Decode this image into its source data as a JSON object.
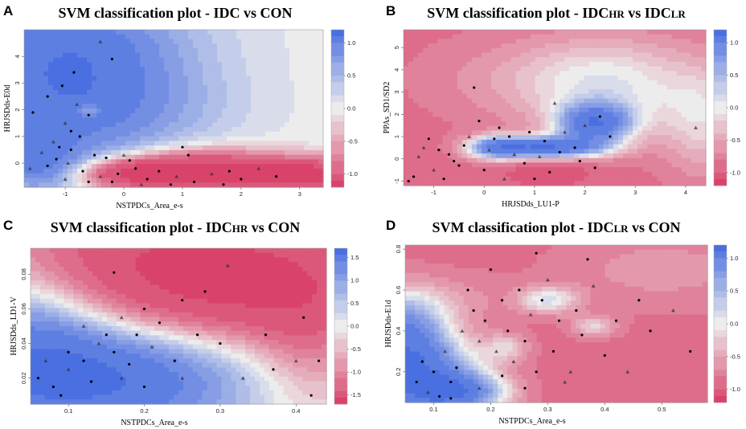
{
  "figure": {
    "colors": {
      "svm_class_a": "#d9436a",
      "svm_neutral": "#ececec",
      "svm_class_b": "#4a6fe0"
    }
  },
  "chart_data": [
    {
      "panel": "A",
      "type": "heatmap",
      "title": "SVM classification plot - IDC vs CON",
      "title_parts": [
        "SVM classification plot - IDC vs CON",
        "",
        ""
      ],
      "xlabel": "NSTPDCs_Area_e-s",
      "ylabel": "HRJSDds-E0d",
      "xlim": [
        -1.7,
        3.4
      ],
      "ylim": [
        -0.9,
        5.0
      ],
      "xticks": [
        "-1",
        "0",
        "1",
        "2",
        "3"
      ],
      "yticks": [
        "0",
        "1",
        "2",
        "3",
        "4"
      ],
      "colorbar": {
        "range": [
          -1.2,
          1.2
        ],
        "ticks": [
          "1.0",
          "0.5",
          "0.0",
          "-0.5",
          "-1.0"
        ]
      },
      "field": {
        "base": 0.0,
        "blobs": [
          {
            "x": -1.1,
            "y": 2.8,
            "sx": 1.1,
            "sy": 2.0,
            "a": 1.2
          },
          {
            "x": -0.6,
            "y": 4.6,
            "sx": 1.5,
            "sy": 1.4,
            "a": 0.6
          },
          {
            "x": -1.5,
            "y": 0.1,
            "sx": 0.5,
            "sy": 0.7,
            "a": 0.9
          },
          {
            "x": 0.4,
            "y": 2.0,
            "sx": 1.2,
            "sy": 1.2,
            "a": 0.4
          },
          {
            "x": 0.1,
            "y": -0.4,
            "sx": 0.6,
            "sy": 0.4,
            "a": -1.6
          },
          {
            "x": 1.3,
            "y": -0.2,
            "sx": 0.8,
            "sy": 0.5,
            "a": -1.4
          },
          {
            "x": 2.5,
            "y": -0.5,
            "sx": 1.0,
            "sy": 0.5,
            "a": -1.2
          },
          {
            "x": 3.2,
            "y": -0.4,
            "sx": 0.5,
            "sy": 0.4,
            "a": -1.0
          },
          {
            "x": -0.6,
            "y": 2.0,
            "sx": 0.15,
            "sy": 0.2,
            "a": -0.8
          }
        ]
      },
      "points": [
        [
          -1.05,
          2.9
        ],
        [
          -0.85,
          3.4
        ],
        [
          -0.4,
          4.55
        ],
        [
          -0.2,
          3.9
        ],
        [
          -1.3,
          2.5
        ],
        [
          -0.8,
          2.2
        ],
        [
          -0.6,
          1.8
        ],
        [
          -1.55,
          1.9
        ],
        [
          -1.0,
          1.5
        ],
        [
          -0.9,
          1.2
        ],
        [
          -0.75,
          1.0
        ],
        [
          -1.2,
          0.8
        ],
        [
          -1.1,
          0.6
        ],
        [
          -0.9,
          0.5
        ],
        [
          -1.4,
          0.4
        ],
        [
          -0.5,
          0.3
        ],
        [
          -0.3,
          0.2
        ],
        [
          -1.6,
          -0.2
        ],
        [
          -1.3,
          -0.1
        ],
        [
          -0.7,
          -0.3
        ],
        [
          -0.4,
          -0.5
        ],
        [
          -0.1,
          -0.4
        ],
        [
          0.2,
          -0.2
        ],
        [
          0.0,
          0.3
        ],
        [
          0.4,
          -0.6
        ],
        [
          0.6,
          -0.3
        ],
        [
          0.9,
          -0.5
        ],
        [
          1.1,
          0.3
        ],
        [
          1.2,
          -0.7
        ],
        [
          1.5,
          -0.4
        ],
        [
          1.8,
          -0.3
        ],
        [
          2.0,
          -0.6
        ],
        [
          2.3,
          -0.2
        ],
        [
          2.6,
          -0.5
        ],
        [
          -0.2,
          -0.7
        ],
        [
          0.3,
          -0.8
        ],
        [
          0.8,
          -0.8
        ],
        [
          1.7,
          -0.8
        ],
        [
          -1.0,
          -0.6
        ],
        [
          -0.6,
          -0.7
        ],
        [
          -1.15,
          0.15
        ],
        [
          -0.95,
          0.0
        ],
        [
          0.1,
          0.1
        ],
        [
          1.0,
          0.6
        ]
      ]
    },
    {
      "panel": "B",
      "type": "heatmap",
      "title": "SVM classification plot - IDCHR vs IDCLR",
      "title_parts": [
        "SVM classification plot - IDC",
        "HR",
        " vs IDC",
        "LR"
      ],
      "xlabel": "HRJSDds_LU1-P",
      "ylabel": "PPAs_SD1/SD2",
      "xlim": [
        -1.6,
        4.4
      ],
      "ylim": [
        -1.2,
        5.8
      ],
      "xticks": [
        "-1",
        "0",
        "1",
        "2",
        "3",
        "4"
      ],
      "yticks": [
        "-1",
        "0",
        "1",
        "2",
        "3",
        "4",
        "5"
      ],
      "colorbar": {
        "range": [
          -1.2,
          1.2
        ],
        "ticks": [
          "1.0",
          "0.5",
          "0.0",
          "-0.5",
          "-1.0"
        ]
      },
      "field": {
        "base": -0.9,
        "blobs": [
          {
            "x": 2.6,
            "y": 3.2,
            "sx": 1.3,
            "sy": 1.8,
            "a": 0.85
          },
          {
            "x": 1.2,
            "y": 0.5,
            "sx": 0.8,
            "sy": 0.35,
            "a": 2.2
          },
          {
            "x": 2.2,
            "y": 1.6,
            "sx": 0.5,
            "sy": 0.6,
            "a": 1.9
          },
          {
            "x": 0.2,
            "y": 0.5,
            "sx": 0.4,
            "sy": 0.4,
            "a": 1.2
          },
          {
            "x": 4.4,
            "y": 1.5,
            "sx": 0.6,
            "sy": 2.0,
            "a": 0.6
          },
          {
            "x": 0.5,
            "y": 3.6,
            "sx": 1.5,
            "sy": 1.5,
            "a": 0.35
          },
          {
            "x": 1.3,
            "y": -0.6,
            "sx": 0.6,
            "sy": 0.4,
            "a": -0.5
          }
        ]
      },
      "points": [
        [
          -1.1,
          0.9
        ],
        [
          -0.9,
          0.4
        ],
        [
          -1.3,
          0.1
        ],
        [
          -0.7,
          0.2
        ],
        [
          -0.5,
          -0.3
        ],
        [
          -1.0,
          -0.5
        ],
        [
          -1.4,
          -0.8
        ],
        [
          -0.8,
          -0.9
        ],
        [
          -0.3,
          1.0
        ],
        [
          -0.2,
          3.2
        ],
        [
          -0.1,
          1.7
        ],
        [
          0.1,
          0.4
        ],
        [
          0.3,
          1.4
        ],
        [
          0.5,
          1.0
        ],
        [
          0.6,
          0.2
        ],
        [
          0.8,
          -0.2
        ],
        [
          0.9,
          1.2
        ],
        [
          1.1,
          0.1
        ],
        [
          1.3,
          -0.6
        ],
        [
          1.5,
          0.3
        ],
        [
          1.6,
          1.2
        ],
        [
          1.8,
          0.5
        ],
        [
          1.9,
          -0.1
        ],
        [
          2.0,
          1.5
        ],
        [
          2.2,
          -0.4
        ],
        [
          2.3,
          1.9
        ],
        [
          1.4,
          2.5
        ],
        [
          2.5,
          1.0
        ],
        [
          -0.6,
          -0.1
        ],
        [
          -1.2,
          0.5
        ],
        [
          -0.4,
          0.6
        ],
        [
          0.0,
          -0.5
        ],
        [
          0.4,
          -0.9
        ],
        [
          1.0,
          -0.9
        ],
        [
          -1.5,
          -1.0
        ],
        [
          4.2,
          1.4
        ],
        [
          0.2,
          0.9
        ],
        [
          1.2,
          0.8
        ]
      ]
    },
    {
      "panel": "C",
      "type": "heatmap",
      "title": "SVM classification plot - IDCHR vs CON",
      "title_parts": [
        "SVM classification plot - IDC",
        "HR",
        " vs CON",
        ""
      ],
      "xlabel": "NSTPDCs_Area_e-s",
      "ylabel": "HRJSDds_LD1-V",
      "xlim": [
        0.05,
        0.44
      ],
      "ylim": [
        0.005,
        0.095
      ],
      "xticks": [
        "0.1",
        "0.2",
        "0.3",
        "0.4"
      ],
      "yticks": [
        "0.02",
        "0.04",
        "0.06",
        "0.08"
      ],
      "colorbar": {
        "range": [
          -1.7,
          1.7
        ],
        "ticks": [
          "1.5",
          "1.0",
          "0.5",
          "0.0",
          "-0.5",
          "-1.0",
          "-1.5"
        ]
      },
      "field": {
        "base": 0.0,
        "blobs": [
          {
            "x": 0.15,
            "y": 0.02,
            "sx": 0.12,
            "sy": 0.022,
            "a": 1.6
          },
          {
            "x": 0.05,
            "y": 0.04,
            "sx": 0.06,
            "sy": 0.03,
            "a": 0.8
          },
          {
            "x": 0.32,
            "y": 0.075,
            "sx": 0.13,
            "sy": 0.025,
            "a": -1.6
          },
          {
            "x": 0.15,
            "y": 0.095,
            "sx": 0.15,
            "sy": 0.025,
            "a": -0.8
          },
          {
            "x": 0.42,
            "y": 0.045,
            "sx": 0.05,
            "sy": 0.03,
            "a": -0.5
          }
        ]
      },
      "points": [
        [
          0.06,
          0.02
        ],
        [
          0.08,
          0.015
        ],
        [
          0.1,
          0.025
        ],
        [
          0.12,
          0.03
        ],
        [
          0.13,
          0.018
        ],
        [
          0.14,
          0.04
        ],
        [
          0.15,
          0.045
        ],
        [
          0.16,
          0.035
        ],
        [
          0.17,
          0.02
        ],
        [
          0.18,
          0.028
        ],
        [
          0.2,
          0.015
        ],
        [
          0.21,
          0.038
        ],
        [
          0.22,
          0.052
        ],
        [
          0.24,
          0.03
        ],
        [
          0.25,
          0.02
        ],
        [
          0.27,
          0.045
        ],
        [
          0.16,
          0.081
        ],
        [
          0.17,
          0.055
        ],
        [
          0.28,
          0.07
        ],
        [
          0.3,
          0.04
        ],
        [
          0.33,
          0.02
        ],
        [
          0.36,
          0.045
        ],
        [
          0.37,
          0.025
        ],
        [
          0.4,
          0.03
        ],
        [
          0.42,
          0.01
        ],
        [
          0.1,
          0.035
        ],
        [
          0.12,
          0.05
        ],
        [
          0.2,
          0.06
        ],
        [
          0.25,
          0.065
        ],
        [
          0.31,
          0.085
        ],
        [
          0.41,
          0.055
        ],
        [
          0.43,
          0.03
        ],
        [
          0.07,
          0.03
        ],
        [
          0.09,
          0.01
        ],
        [
          0.19,
          0.045
        ]
      ]
    },
    {
      "panel": "D",
      "type": "heatmap",
      "title": "SVM classification plot - IDCLR vs CON",
      "title_parts": [
        "SVM classification plot - IDC",
        "LR",
        " vs CON",
        ""
      ],
      "xlabel": "NSTPDCs_Area_e-s",
      "ylabel": "HRJSDds-E1d",
      "xlim": [
        0.05,
        0.58
      ],
      "ylim": [
        0.05,
        0.82
      ],
      "xticks": [
        "0.1",
        "0.2",
        "0.3",
        "0.4",
        "0.5"
      ],
      "yticks": [
        "0.2",
        "0.4",
        "0.6",
        "0.8"
      ],
      "colorbar": {
        "range": [
          -1.2,
          1.2
        ],
        "ticks": [
          "1.0",
          "0.5",
          "0.0",
          "-0.5",
          "-1.0"
        ]
      },
      "field": {
        "base": -0.9,
        "blobs": [
          {
            "x": 0.08,
            "y": 0.15,
            "sx": 0.08,
            "sy": 0.15,
            "a": 2.1
          },
          {
            "x": 0.05,
            "y": 0.4,
            "sx": 0.05,
            "sy": 0.15,
            "a": 1.6
          },
          {
            "x": 0.15,
            "y": 0.1,
            "sx": 0.06,
            "sy": 0.06,
            "a": 1.2
          },
          {
            "x": 0.3,
            "y": 0.55,
            "sx": 0.04,
            "sy": 0.05,
            "a": 0.9
          },
          {
            "x": 0.38,
            "y": 0.42,
            "sx": 0.03,
            "sy": 0.04,
            "a": 0.7
          },
          {
            "x": 0.23,
            "y": 0.32,
            "sx": 0.03,
            "sy": 0.05,
            "a": 0.6
          },
          {
            "x": 0.5,
            "y": 0.7,
            "sx": 0.15,
            "sy": 0.15,
            "a": 0.4
          },
          {
            "x": 0.15,
            "y": 0.55,
            "sx": 0.06,
            "sy": 0.1,
            "a": 0.3
          }
        ]
      },
      "points": [
        [
          0.07,
          0.15
        ],
        [
          0.08,
          0.25
        ],
        [
          0.09,
          0.1
        ],
        [
          0.1,
          0.2
        ],
        [
          0.11,
          0.08
        ],
        [
          0.12,
          0.3
        ],
        [
          0.13,
          0.15
        ],
        [
          0.14,
          0.22
        ],
        [
          0.15,
          0.4
        ],
        [
          0.16,
          0.6
        ],
        [
          0.17,
          0.5
        ],
        [
          0.18,
          0.35
        ],
        [
          0.19,
          0.45
        ],
        [
          0.2,
          0.7
        ],
        [
          0.21,
          0.3
        ],
        [
          0.22,
          0.55
        ],
        [
          0.23,
          0.4
        ],
        [
          0.24,
          0.25
        ],
        [
          0.25,
          0.6
        ],
        [
          0.26,
          0.35
        ],
        [
          0.27,
          0.48
        ],
        [
          0.28,
          0.2
        ],
        [
          0.29,
          0.55
        ],
        [
          0.3,
          0.65
        ],
        [
          0.31,
          0.3
        ],
        [
          0.32,
          0.45
        ],
        [
          0.33,
          0.15
        ],
        [
          0.35,
          0.5
        ],
        [
          0.36,
          0.38
        ],
        [
          0.38,
          0.62
        ],
        [
          0.4,
          0.28
        ],
        [
          0.42,
          0.45
        ],
        [
          0.44,
          0.2
        ],
        [
          0.46,
          0.55
        ],
        [
          0.48,
          0.4
        ],
        [
          0.52,
          0.5
        ],
        [
          0.55,
          0.3
        ],
        [
          0.13,
          0.07
        ],
        [
          0.18,
          0.12
        ],
        [
          0.22,
          0.18
        ],
        [
          0.26,
          0.12
        ],
        [
          0.34,
          0.2
        ],
        [
          0.37,
          0.75
        ],
        [
          0.28,
          0.78
        ]
      ]
    }
  ]
}
